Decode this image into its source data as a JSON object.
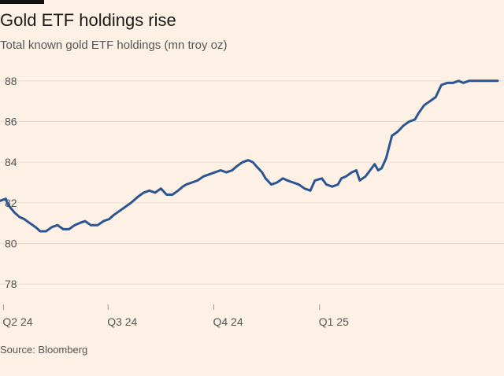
{
  "header": {
    "title": "Gold ETF holdings rise",
    "subtitle": "Total known gold ETF holdings (mn troy oz)"
  },
  "footer": {
    "source": "Source: Bloomberg"
  },
  "chart_data": {
    "type": "line",
    "title": "Gold ETF holdings rise",
    "subtitle": "Total known gold ETF holdings (mn troy oz)",
    "xlabel": "",
    "ylabel": "",
    "ylim": [
      77,
      89
    ],
    "xlim": [
      "2024-03-29",
      "2025-06-05"
    ],
    "yticks": [
      78,
      80,
      82,
      84,
      86,
      88
    ],
    "xticks": [
      {
        "label": "Q2 24",
        "date": "2024-04-01"
      },
      {
        "label": "Q3 24",
        "date": "2024-07-01"
      },
      {
        "label": "Q4 24",
        "date": "2024-10-01"
      },
      {
        "label": "Q1 25",
        "date": "2025-01-01"
      }
    ],
    "grid": "horizontal",
    "legend": "none",
    "color": "#2c5592",
    "series": [
      {
        "x": [
          "2024-03-29",
          "2024-04-03",
          "2024-04-05",
          "2024-04-08",
          "2024-04-11",
          "2024-04-15",
          "2024-04-19",
          "2024-04-24",
          "2024-04-29",
          "2024-05-03",
          "2024-05-08",
          "2024-05-13",
          "2024-05-18",
          "2024-05-23",
          "2024-05-28",
          "2024-06-02",
          "2024-06-06",
          "2024-06-11",
          "2024-06-16",
          "2024-06-22",
          "2024-06-27",
          "2024-07-02",
          "2024-07-06",
          "2024-07-11",
          "2024-07-16",
          "2024-07-21",
          "2024-07-27",
          "2024-08-01",
          "2024-08-06",
          "2024-08-11",
          "2024-08-16",
          "2024-08-21",
          "2024-08-26",
          "2024-08-31",
          "2024-09-04",
          "2024-09-07",
          "2024-09-12",
          "2024-09-17",
          "2024-09-22",
          "2024-09-27",
          "2024-10-02",
          "2024-10-07",
          "2024-10-12",
          "2024-10-17",
          "2024-10-21",
          "2024-10-26",
          "2024-10-31",
          "2024-11-04",
          "2024-11-07",
          "2024-11-12",
          "2024-11-15",
          "2024-11-20",
          "2024-11-25",
          "2024-11-30",
          "2024-12-04",
          "2024-12-09",
          "2024-12-14",
          "2024-12-19",
          "2024-12-24",
          "2024-12-28",
          "2025-01-03",
          "2025-01-07",
          "2025-01-12",
          "2025-01-17",
          "2025-01-20",
          "2025-01-24",
          "2025-01-29",
          "2025-02-02",
          "2025-02-05",
          "2025-02-10",
          "2025-02-14",
          "2025-02-18",
          "2025-02-21",
          "2025-02-24",
          "2025-02-28",
          "2025-03-05",
          "2025-03-10",
          "2025-03-15",
          "2025-03-20",
          "2025-03-25",
          "2025-03-28",
          "2025-04-02",
          "2025-04-07",
          "2025-04-12",
          "2025-04-17",
          "2025-04-22",
          "2025-04-27",
          "2025-05-02",
          "2025-05-06",
          "2025-05-11",
          "2025-05-16",
          "2025-05-21",
          "2025-05-26",
          "2025-05-31",
          "2025-06-05"
        ],
        "values": [
          82.1,
          82.2,
          81.9,
          81.7,
          81.5,
          81.3,
          81.2,
          81.0,
          80.8,
          80.6,
          80.6,
          80.8,
          80.9,
          80.7,
          80.7,
          80.9,
          81.0,
          81.1,
          80.9,
          80.9,
          81.1,
          81.2,
          81.4,
          81.6,
          81.8,
          82.0,
          82.3,
          82.5,
          82.6,
          82.5,
          82.7,
          82.4,
          82.4,
          82.6,
          82.8,
          82.9,
          83.0,
          83.1,
          83.3,
          83.4,
          83.5,
          83.6,
          83.5,
          83.6,
          83.8,
          84.0,
          84.1,
          84.0,
          83.8,
          83.5,
          83.2,
          82.9,
          83.0,
          83.2,
          83.1,
          83.0,
          82.9,
          82.7,
          82.6,
          83.1,
          83.2,
          82.9,
          82.8,
          82.9,
          83.2,
          83.3,
          83.5,
          83.6,
          83.1,
          83.3,
          83.6,
          83.9,
          83.6,
          83.7,
          84.2,
          85.3,
          85.5,
          85.8,
          86.0,
          86.1,
          86.4,
          86.8,
          87.0,
          87.2,
          87.8,
          87.9,
          87.9,
          88.0,
          87.9,
          88.0,
          88.0,
          88.0,
          88.0,
          88.0,
          88.0
        ]
      }
    ]
  }
}
